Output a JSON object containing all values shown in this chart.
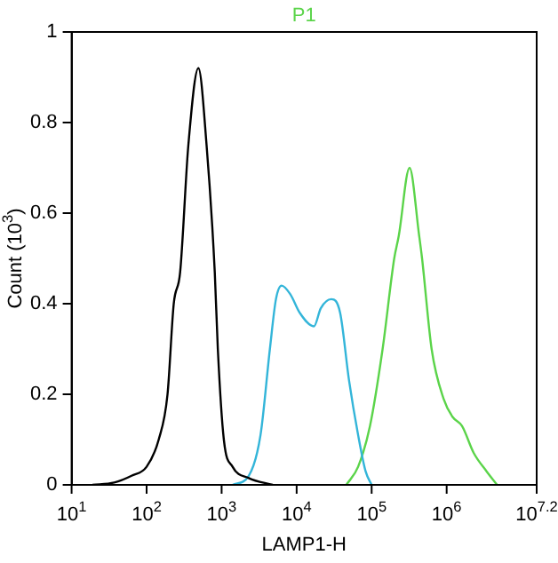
{
  "chart_data": {
    "type": "line",
    "title": "P1",
    "xlabel": "LAMP1-H",
    "ylabel": "Count (10$^{3}$)",
    "log": "x",
    "grid": false,
    "legend": false,
    "marker": "none",
    "xlim": [
      10,
      15848932
    ],
    "xticks": [
      {
        "value": 10,
        "label": "10$^{1}$"
      },
      {
        "value": 100,
        "label": "10$^{2}$"
      },
      {
        "value": 1000,
        "label": "10$^{3}$"
      },
      {
        "value": 10000,
        "label": "10$^{4}$"
      },
      {
        "value": 100000,
        "label": "10$^{5}$"
      },
      {
        "value": 1000000,
        "label": "10$^{6}$"
      },
      {
        "value": 15848932,
        "label": "10$^{7.2}$"
      }
    ],
    "ylim": [
      0,
      1
    ],
    "yticks": [
      0,
      0.2,
      0.4,
      0.6,
      0.8,
      1
    ],
    "series": [
      {
        "color": "#000000",
        "x": [
          19,
          37,
          63,
          100,
          145,
          190,
          230,
          280,
          360,
          490,
          630,
          810,
          890,
          1070,
          1400,
          2300,
          4800
        ],
        "values": [
          0,
          0.005,
          0.02,
          0.04,
          0.1,
          0.2,
          0.4,
          0.47,
          0.75,
          0.92,
          0.75,
          0.47,
          0.3,
          0.1,
          0.04,
          0.015,
          0
        ]
      },
      {
        "color": "#33b5d9",
        "x": [
          1400,
          2300,
          3300,
          4400,
          5300,
          6300,
          8300,
          11000,
          17000,
          21000,
          29000,
          38000,
          50000,
          66000,
          83000,
          100000
        ],
        "values": [
          0,
          0.02,
          0.11,
          0.3,
          0.41,
          0.44,
          0.42,
          0.38,
          0.35,
          0.39,
          0.41,
          0.38,
          0.23,
          0.11,
          0.03,
          0
        ]
      },
      {
        "color": "#5bd44a",
        "x": [
          46000,
          66000,
          95000,
          140000,
          200000,
          230000,
          320000,
          430000,
          470000,
          630000,
          910000,
          1200000,
          1600000,
          2300000,
          3400000,
          4700000
        ],
        "values": [
          0,
          0.04,
          0.13,
          0.3,
          0.5,
          0.55,
          0.7,
          0.55,
          0.5,
          0.3,
          0.19,
          0.15,
          0.13,
          0.07,
          0.03,
          0
        ]
      }
    ]
  }
}
